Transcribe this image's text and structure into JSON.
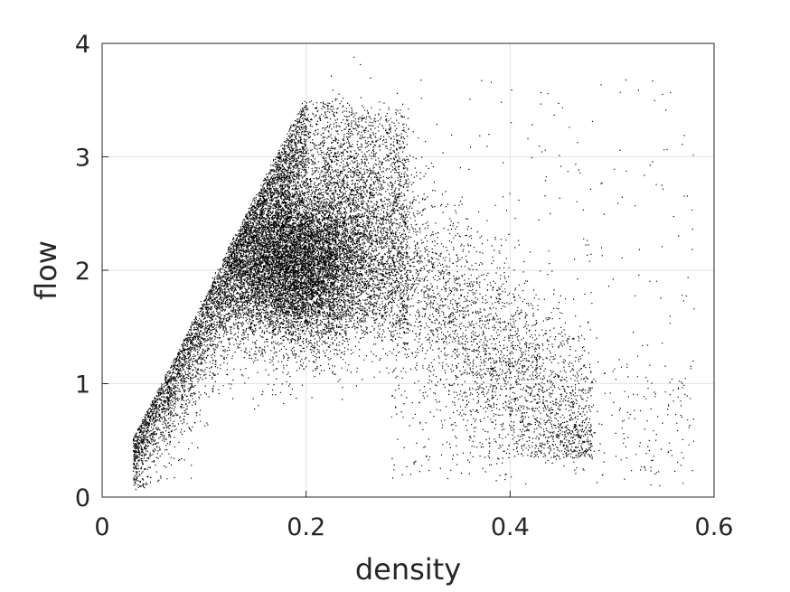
{
  "chart_data": {
    "type": "scatter",
    "title": "",
    "xlabel": "density",
    "ylabel": "flow",
    "xlim": [
      0,
      0.6
    ],
    "ylim": [
      0,
      4
    ],
    "xticks": [
      0,
      0.2,
      0.4,
      0.6
    ],
    "xtick_labels": [
      "0",
      "0.2",
      "0.4",
      "0.6"
    ],
    "yticks": [
      0,
      1,
      2,
      3,
      4
    ],
    "ytick_labels": [
      "0",
      "1",
      "2",
      "3",
      "4"
    ],
    "grid": true,
    "marker_color": "#000000",
    "grid_color": "#e3e3e3",
    "axis_color": "#262626",
    "point_count": 22000,
    "distribution": {
      "free_flow_branch": {
        "x_range": [
          0.01,
          0.2
        ],
        "y_range": [
          0.1,
          3.5
        ]
      },
      "dense_core": {
        "x": 0.19,
        "y": 2.05
      },
      "congested_branch": {
        "x_range": [
          0.2,
          0.48
        ],
        "y_range": [
          3.0,
          0.3
        ]
      },
      "outliers": {
        "x_range": [
          0.3,
          0.58
        ],
        "y_range": [
          0.1,
          3.9
        ]
      }
    }
  }
}
